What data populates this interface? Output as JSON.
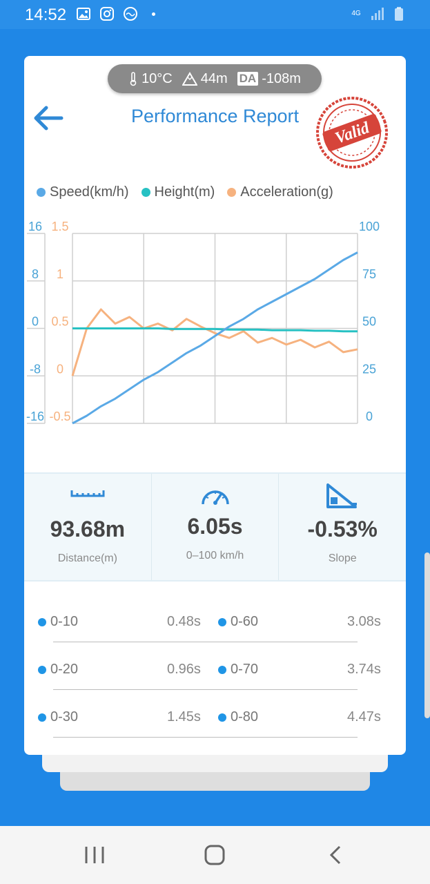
{
  "status": {
    "time": "14:52",
    "network": "4G"
  },
  "env": {
    "temp": "10°C",
    "altitude": "44m",
    "da_label": "DA",
    "da_value": "-108m"
  },
  "header": {
    "title": "Performance Report",
    "stamp": "Valid"
  },
  "legend": [
    {
      "label": "Speed(km/h)",
      "color": "#5aa9e6"
    },
    {
      "label": "Height(m)",
      "color": "#27c1c3"
    },
    {
      "label": "Acceleration(g)",
      "color": "#f6b27f"
    }
  ],
  "chart_data": {
    "type": "line",
    "x": [
      0,
      1,
      2,
      3,
      4,
      5,
      6,
      7,
      8,
      9,
      10,
      11,
      12,
      13,
      14,
      15,
      16,
      17,
      18,
      19,
      20
    ],
    "series": [
      {
        "name": "Speed(km/h)",
        "axis": "right",
        "color": "#5aa9e6",
        "values": [
          0,
          4,
          9,
          13,
          18,
          23,
          27,
          32,
          37,
          41,
          46,
          51,
          55,
          60,
          64,
          68,
          72,
          76,
          81,
          86,
          90
        ]
      },
      {
        "name": "Height(m)",
        "axis": "left-outer",
        "color": "#27c1c3",
        "values": [
          0,
          0,
          0,
          0,
          0,
          0,
          0,
          -0.1,
          -0.1,
          -0.1,
          -0.1,
          -0.2,
          -0.2,
          -0.2,
          -0.3,
          -0.3,
          -0.3,
          -0.4,
          -0.4,
          -0.5,
          -0.5
        ]
      },
      {
        "name": "Acceleration(g)",
        "axis": "left-inner",
        "color": "#f6b27f",
        "values": [
          0,
          0.5,
          0.7,
          0.55,
          0.62,
          0.5,
          0.55,
          0.48,
          0.6,
          0.52,
          0.45,
          0.4,
          0.47,
          0.35,
          0.4,
          0.33,
          0.38,
          0.3,
          0.36,
          0.25,
          0.28
        ]
      }
    ],
    "axes": {
      "left_outer": {
        "ticks": [
          "16",
          "8",
          "0",
          "-8",
          "-16"
        ],
        "range": [
          -16,
          16
        ],
        "color": "#4aa3d6"
      },
      "left_inner": {
        "ticks": [
          "1.5",
          "1",
          "0.5",
          "0",
          "-0.5"
        ],
        "range": [
          -0.5,
          1.5
        ],
        "color": "#f6b27f"
      },
      "right": {
        "ticks": [
          "100",
          "75",
          "50",
          "25",
          "0"
        ],
        "range": [
          0,
          100
        ],
        "color": "#4aa3d6"
      }
    },
    "grid": true
  },
  "stats": [
    {
      "icon": "ruler-icon",
      "value": "93.68m",
      "label": "Distance(m)"
    },
    {
      "icon": "speedometer-icon",
      "value": "6.05s",
      "label": "0–100 km/h"
    },
    {
      "icon": "slope-icon",
      "value": "-0.53%",
      "label": "Slope"
    }
  ],
  "splits": [
    {
      "left_label": "0-10",
      "left_time": "0.48s",
      "right_label": "0-60",
      "right_time": "3.08s"
    },
    {
      "left_label": "0-20",
      "left_time": "0.96s",
      "right_label": "0-70",
      "right_time": "3.74s"
    },
    {
      "left_label": "0-30",
      "left_time": "1.45s",
      "right_label": "0-80",
      "right_time": "4.47s"
    }
  ]
}
